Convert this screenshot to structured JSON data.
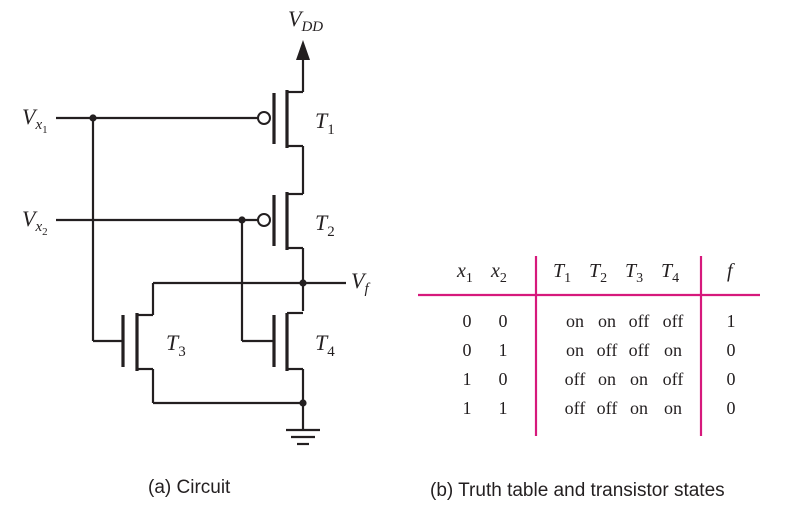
{
  "circuit": {
    "vdd": {
      "main": "V",
      "sub": "DD"
    },
    "vx1": {
      "main": "V",
      "sub": "x",
      "subsub": "1"
    },
    "vx2": {
      "main": "V",
      "sub": "x",
      "subsub": "2"
    },
    "vf": {
      "main": "V",
      "sub": "f"
    },
    "transistors": [
      {
        "main": "T",
        "sub": "1"
      },
      {
        "main": "T",
        "sub": "2"
      },
      {
        "main": "T",
        "sub": "3"
      },
      {
        "main": "T",
        "sub": "4"
      }
    ],
    "caption": "(a) Circuit"
  },
  "table": {
    "headers": {
      "x1": {
        "main": "x",
        "sub": "1"
      },
      "x2": {
        "main": "x",
        "sub": "2"
      },
      "t1": {
        "main": "T",
        "sub": "1"
      },
      "t2": {
        "main": "T",
        "sub": "2"
      },
      "t3": {
        "main": "T",
        "sub": "3"
      },
      "t4": {
        "main": "T",
        "sub": "4"
      },
      "f": "f"
    },
    "rows": [
      {
        "x1": "0",
        "x2": "0",
        "t1": "on",
        "t2": "on",
        "t3": "off",
        "t4": "off",
        "f": "1"
      },
      {
        "x1": "0",
        "x2": "1",
        "t1": "on",
        "t2": "off",
        "t3": "off",
        "t4": "on",
        "f": "0"
      },
      {
        "x1": "1",
        "x2": "0",
        "t1": "off",
        "t2": "on",
        "t3": "on",
        "t4": "off",
        "f": "0"
      },
      {
        "x1": "1",
        "x2": "1",
        "t1": "off",
        "t2": "off",
        "t3": "on",
        "t4": "on",
        "f": "0"
      }
    ],
    "caption": "(b) Truth table and transistor states"
  }
}
